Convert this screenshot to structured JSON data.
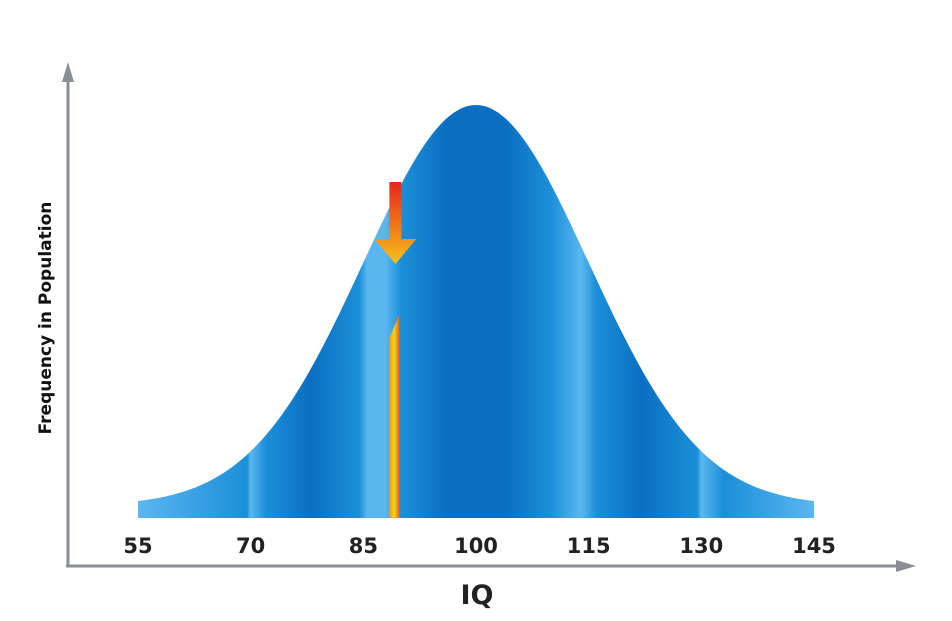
{
  "chart_data": {
    "type": "area",
    "title": "",
    "xlabel": "IQ",
    "ylabel": "Frequency in Population",
    "xlim": [
      55,
      145
    ],
    "ticks": [
      55,
      70,
      85,
      100,
      115,
      130,
      145
    ],
    "tick_labels": [
      "55",
      "70",
      "85",
      "100",
      "115",
      "130",
      "145"
    ],
    "distribution": {
      "kind": "normal",
      "mean": 100,
      "sd": 15
    },
    "marker": {
      "x": 89,
      "label": ""
    },
    "grid": false,
    "legend": "none"
  },
  "colors": {
    "curve_dark": "#0a6fc2",
    "curve_mid": "#1c8fd9",
    "curve_light": "#5ab6ef",
    "axis": "#8a8f96",
    "marker_top": "#e5251b",
    "marker_bottom": "#f7c21a"
  }
}
